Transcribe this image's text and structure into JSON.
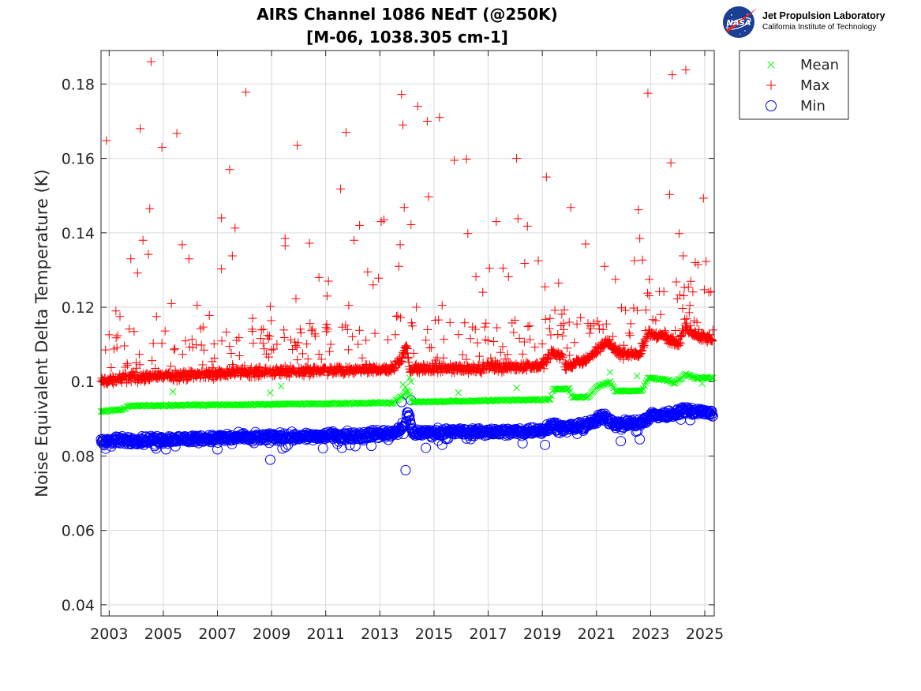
{
  "title_line1": "AIRS Channel 1086 NEdT (@250K)",
  "title_line2": "[M-06, 1038.305 cm-1]",
  "logo": {
    "emblem_text": "NASA",
    "org_name": "Jet Propulsion Laboratory",
    "org_sub": "California Institute of Technology"
  },
  "colors": {
    "mean": "#00ff00",
    "max": "#ff0000",
    "min": "#0000ff",
    "grid": "#d9d9d9",
    "axis": "#262626"
  },
  "chart_data": {
    "type": "scatter",
    "title": "AIRS Channel 1086 NEdT (@250K) [M-06, 1038.305 cm-1]",
    "xlabel": "",
    "ylabel": "Noise Equivalent Delta Temperature (K)",
    "xlim": [
      2002.7,
      2025.35
    ],
    "ylim": [
      0.037,
      0.189
    ],
    "grid": true,
    "legend_position": "outside-top-right",
    "x_ticks": [
      "2003",
      "2005",
      "2007",
      "2009",
      "2011",
      "2013",
      "2015",
      "2017",
      "2019",
      "2021",
      "2023",
      "2025"
    ],
    "y_ticks": [
      "0.04",
      "0.06",
      "0.08",
      "0.1",
      "0.12",
      "0.14",
      "0.16",
      "0.18"
    ],
    "series": [
      {
        "name": "Mean",
        "marker": "x",
        "baseline": [
          [
            2002.7,
            0.092
          ],
          [
            2003.5,
            0.0925
          ],
          [
            2003.8,
            0.0935
          ],
          [
            2008.0,
            0.0938
          ],
          [
            2013.5,
            0.0943
          ],
          [
            2014.05,
            0.0975
          ],
          [
            2014.2,
            0.0945
          ],
          [
            2019.3,
            0.0952
          ],
          [
            2019.4,
            0.098
          ],
          [
            2020.0,
            0.098
          ],
          [
            2020.1,
            0.0958
          ],
          [
            2020.7,
            0.0958
          ],
          [
            2021.0,
            0.0985
          ],
          [
            2021.5,
            0.1
          ],
          [
            2021.7,
            0.0975
          ],
          [
            2022.7,
            0.0975
          ],
          [
            2022.9,
            0.101
          ],
          [
            2023.6,
            0.1005
          ],
          [
            2023.9,
            0.0995
          ],
          [
            2024.3,
            0.102
          ],
          [
            2024.7,
            0.101
          ],
          [
            2025.3,
            0.101
          ]
        ],
        "outliers": [
          [
            2005.35,
            0.0973
          ],
          [
            2008.95,
            0.097
          ],
          [
            2009.35,
            0.0988
          ],
          [
            2013.85,
            0.0992
          ],
          [
            2013.95,
            0.0985
          ],
          [
            2014.1,
            0.101
          ],
          [
            2014.15,
            0.1
          ],
          [
            2015.9,
            0.097
          ],
          [
            2018.05,
            0.0983
          ],
          [
            2021.5,
            0.1025
          ],
          [
            2022.5,
            0.1015
          ],
          [
            2024.9,
            0.0995
          ]
        ]
      },
      {
        "name": "Max",
        "marker": "+",
        "baseline": [
          [
            2002.7,
            0.1
          ],
          [
            2003.8,
            0.101
          ],
          [
            2008.0,
            0.1025
          ],
          [
            2012.0,
            0.103
          ],
          [
            2013.5,
            0.1035
          ],
          [
            2014.0,
            0.109
          ],
          [
            2014.1,
            0.1035
          ],
          [
            2016.0,
            0.1035
          ],
          [
            2018.0,
            0.104
          ],
          [
            2019.0,
            0.1045
          ],
          [
            2019.4,
            0.108
          ],
          [
            2019.7,
            0.107
          ],
          [
            2019.9,
            0.104
          ],
          [
            2020.5,
            0.1055
          ],
          [
            2021.0,
            0.108
          ],
          [
            2021.4,
            0.111
          ],
          [
            2021.8,
            0.1075
          ],
          [
            2022.6,
            0.1075
          ],
          [
            2022.9,
            0.113
          ],
          [
            2023.5,
            0.112
          ],
          [
            2024.0,
            0.11
          ],
          [
            2024.3,
            0.1145
          ],
          [
            2024.8,
            0.112
          ],
          [
            2025.3,
            0.1115
          ]
        ],
        "outliers": [
          [
            2002.9,
            0.1648
          ],
          [
            2003.0,
            0.1126
          ],
          [
            2003.25,
            0.119
          ],
          [
            2003.4,
            0.1175
          ],
          [
            2003.8,
            0.133
          ],
          [
            2004.05,
            0.1292
          ],
          [
            2004.15,
            0.168
          ],
          [
            2004.25,
            0.138
          ],
          [
            2004.45,
            0.1342
          ],
          [
            2004.5,
            0.1465
          ],
          [
            2004.55,
            0.186
          ],
          [
            2004.75,
            0.1175
          ],
          [
            2004.95,
            0.163
          ],
          [
            2005.3,
            0.121
          ],
          [
            2005.5,
            0.1667
          ],
          [
            2005.7,
            0.1368
          ],
          [
            2005.95,
            0.133
          ],
          [
            2006.25,
            0.1205
          ],
          [
            2006.7,
            0.1178
          ],
          [
            2007.15,
            0.144
          ],
          [
            2007.15,
            0.1303
          ],
          [
            2007.45,
            0.157
          ],
          [
            2007.55,
            0.1338
          ],
          [
            2007.65,
            0.1413
          ],
          [
            2008.05,
            0.1778
          ],
          [
            2008.3,
            0.117
          ],
          [
            2008.95,
            0.1202
          ],
          [
            2009.5,
            0.1385
          ],
          [
            2009.5,
            0.1365
          ],
          [
            2009.9,
            0.1223
          ],
          [
            2009.95,
            0.1635
          ],
          [
            2010.4,
            0.1372
          ],
          [
            2010.75,
            0.128
          ],
          [
            2011.05,
            0.123
          ],
          [
            2011.1,
            0.127
          ],
          [
            2011.55,
            0.1518
          ],
          [
            2011.75,
            0.167
          ],
          [
            2011.85,
            0.1205
          ],
          [
            2012.05,
            0.138
          ],
          [
            2012.25,
            0.142
          ],
          [
            2012.55,
            0.1295
          ],
          [
            2012.75,
            0.126
          ],
          [
            2012.95,
            0.1278
          ],
          [
            2013.05,
            0.143
          ],
          [
            2013.15,
            0.1435
          ],
          [
            2013.7,
            0.131
          ],
          [
            2013.75,
            0.1368
          ],
          [
            2013.8,
            0.1772
          ],
          [
            2013.85,
            0.169
          ],
          [
            2013.9,
            0.1468
          ],
          [
            2014.15,
            0.1422
          ],
          [
            2014.35,
            0.12
          ],
          [
            2014.4,
            0.174
          ],
          [
            2014.75,
            0.17
          ],
          [
            2014.8,
            0.1497
          ],
          [
            2015.2,
            0.171
          ],
          [
            2015.3,
            0.1205
          ],
          [
            2015.75,
            0.1595
          ],
          [
            2016.2,
            0.1598
          ],
          [
            2016.25,
            0.1398
          ],
          [
            2016.55,
            0.1282
          ],
          [
            2016.8,
            0.124
          ],
          [
            2017.05,
            0.1305
          ],
          [
            2017.3,
            0.143
          ],
          [
            2017.55,
            0.1305
          ],
          [
            2017.75,
            0.1282
          ],
          [
            2018.05,
            0.16
          ],
          [
            2018.1,
            0.1438
          ],
          [
            2018.45,
            0.1418
          ],
          [
            2018.35,
            0.1318
          ],
          [
            2018.85,
            0.1325
          ],
          [
            2019.1,
            0.1255
          ],
          [
            2019.15,
            0.155
          ],
          [
            2019.6,
            0.1265
          ],
          [
            2020.05,
            0.1468
          ],
          [
            2020.6,
            0.137
          ],
          [
            2021.3,
            0.131
          ],
          [
            2021.7,
            0.1275
          ],
          [
            2022.4,
            0.1325
          ],
          [
            2022.55,
            0.1462
          ],
          [
            2022.6,
            0.1385
          ],
          [
            2022.7,
            0.1327
          ],
          [
            2022.9,
            0.1775
          ],
          [
            2022.95,
            0.1275
          ],
          [
            2023.7,
            0.1503
          ],
          [
            2023.75,
            0.1588
          ],
          [
            2023.8,
            0.1825
          ],
          [
            2023.95,
            0.1268
          ],
          [
            2024.05,
            0.1398
          ],
          [
            2024.2,
            0.1338
          ],
          [
            2024.3,
            0.1838
          ],
          [
            2024.45,
            0.1205
          ],
          [
            2024.65,
            0.132
          ],
          [
            2024.75,
            0.1315
          ],
          [
            2024.95,
            0.1493
          ],
          [
            2025.05,
            0.1323
          ],
          [
            2025.15,
            0.124
          ]
        ]
      },
      {
        "name": "Min",
        "marker": "o",
        "baseline": [
          [
            2002.7,
            0.084
          ],
          [
            2008.0,
            0.085
          ],
          [
            2012.0,
            0.0855
          ],
          [
            2013.5,
            0.0862
          ],
          [
            2013.9,
            0.088
          ],
          [
            2014.05,
            0.092
          ],
          [
            2014.2,
            0.0862
          ],
          [
            2016.0,
            0.0865
          ],
          [
            2018.0,
            0.0865
          ],
          [
            2019.0,
            0.087
          ],
          [
            2019.4,
            0.0885
          ],
          [
            2019.8,
            0.0875
          ],
          [
            2020.5,
            0.088
          ],
          [
            2021.0,
            0.0895
          ],
          [
            2021.3,
            0.091
          ],
          [
            2021.7,
            0.0885
          ],
          [
            2022.7,
            0.089
          ],
          [
            2023.0,
            0.091
          ],
          [
            2023.6,
            0.091
          ],
          [
            2024.3,
            0.0925
          ],
          [
            2024.7,
            0.092
          ],
          [
            2025.3,
            0.0915
          ]
        ],
        "outliers": [
          [
            2008.95,
            0.079
          ],
          [
            2013.95,
            0.0762
          ],
          [
            2005.1,
            0.0818
          ],
          [
            2007.0,
            0.0818
          ],
          [
            2009.4,
            0.082
          ],
          [
            2010.9,
            0.0821
          ],
          [
            2011.6,
            0.0822
          ],
          [
            2014.7,
            0.0822
          ],
          [
            2015.3,
            0.083
          ],
          [
            2019.1,
            0.083
          ],
          [
            2021.9,
            0.084
          ],
          [
            2022.6,
            0.0845
          ],
          [
            2013.8,
            0.0945
          ],
          [
            2014.15,
            0.095
          ]
        ]
      }
    ]
  },
  "legend": {
    "items": [
      {
        "label": "Mean",
        "marker": "x"
      },
      {
        "label": "Max",
        "marker": "+"
      },
      {
        "label": "Min",
        "marker": "o"
      }
    ]
  }
}
